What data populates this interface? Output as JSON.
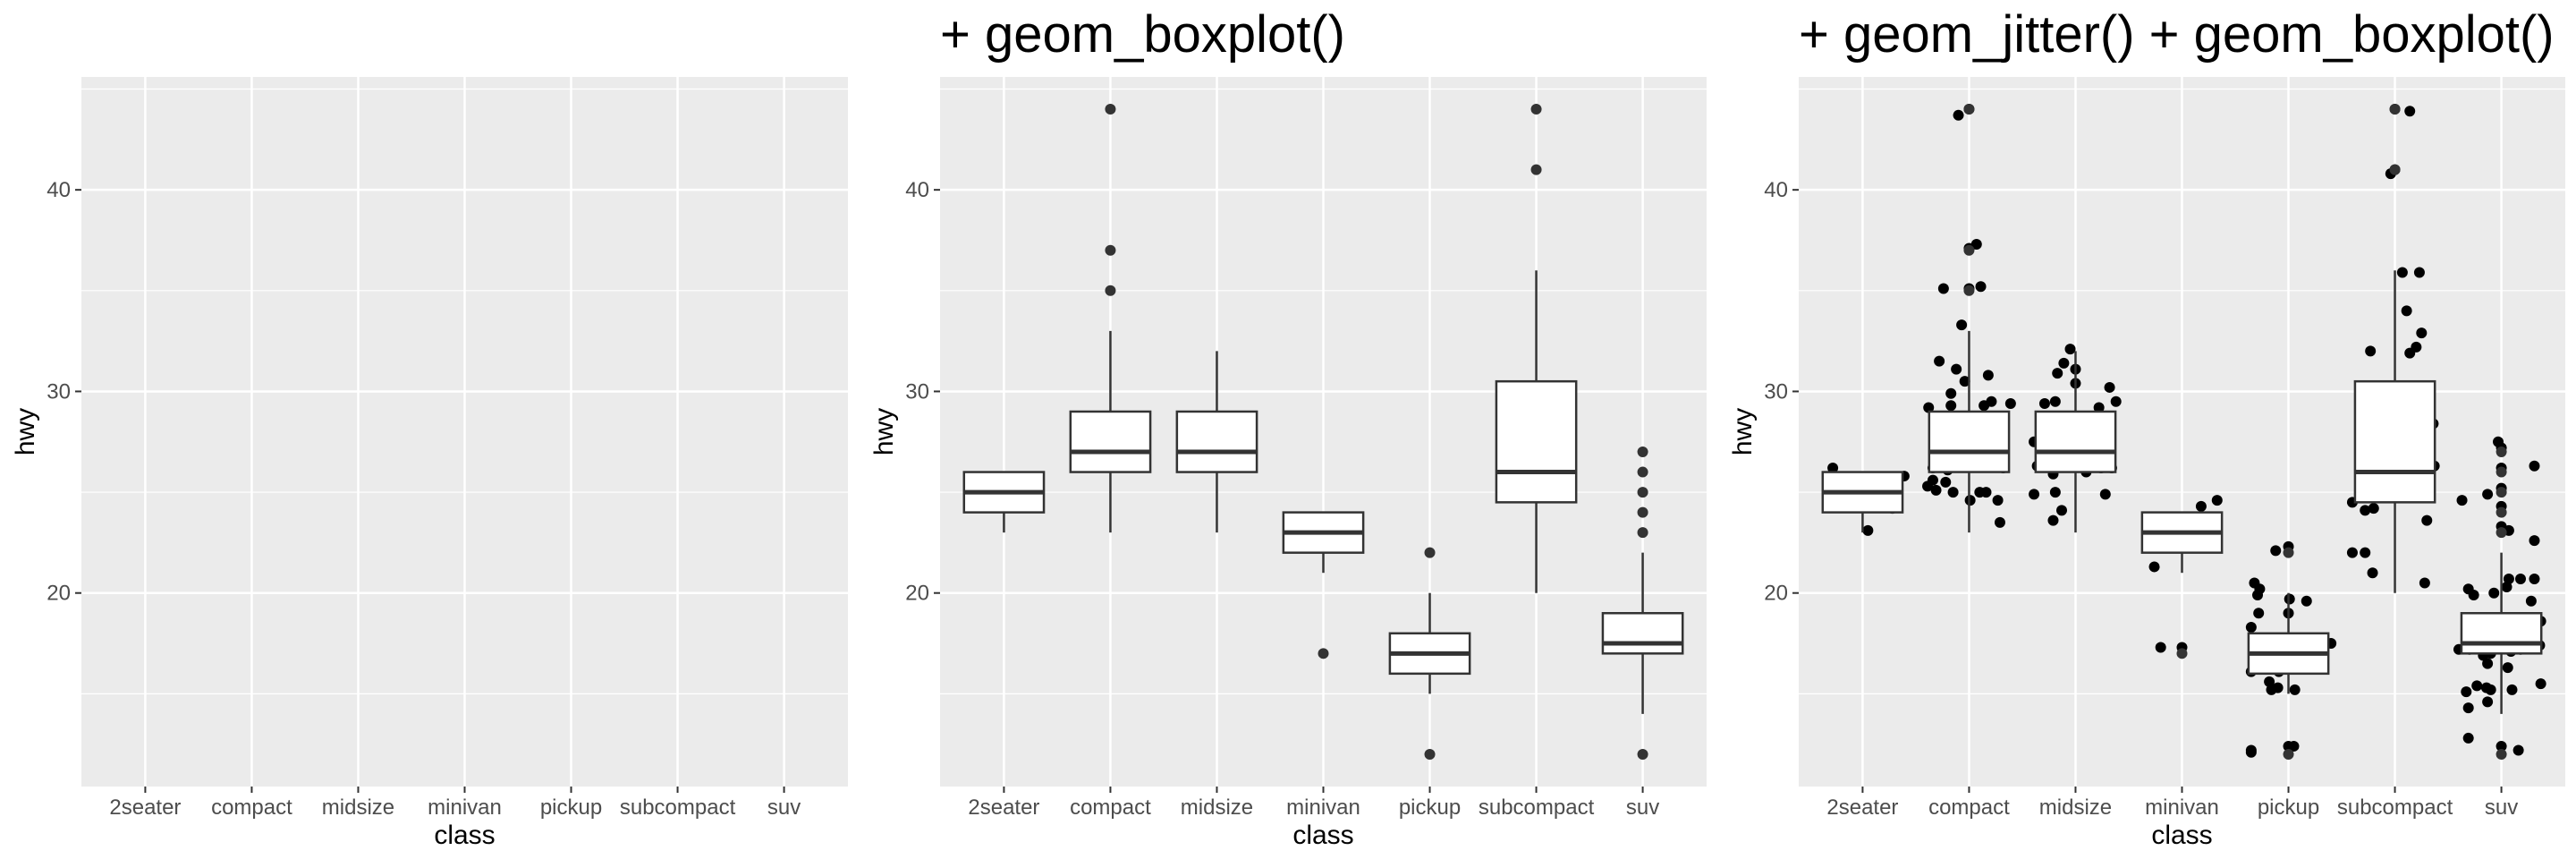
{
  "chart_data": [
    {
      "type": "boxplot",
      "title": "",
      "xlabel": "class",
      "ylabel": "hwy",
      "categories": [
        "2seater",
        "compact",
        "midsize",
        "minivan",
        "pickup",
        "subcompact",
        "suv"
      ],
      "ylim": [
        10.4,
        45.6
      ],
      "yticks": [
        20,
        30,
        40
      ],
      "yticks_minor": [
        15,
        25,
        35,
        45
      ],
      "grid": true,
      "layers": []
    },
    {
      "type": "boxplot",
      "title": "+ geom_boxplot()",
      "xlabel": "class",
      "ylabel": "hwy",
      "categories": [
        "2seater",
        "compact",
        "midsize",
        "minivan",
        "pickup",
        "subcompact",
        "suv"
      ],
      "ylim": [
        10.4,
        45.6
      ],
      "yticks": [
        20,
        30,
        40
      ],
      "yticks_minor": [
        15,
        25,
        35,
        45
      ],
      "grid": true,
      "layers": [
        "boxplot"
      ],
      "boxes": [
        {
          "lower_whisker": 23,
          "q1": 24,
          "median": 25,
          "q3": 26,
          "upper_whisker": 26,
          "outliers": []
        },
        {
          "lower_whisker": 23,
          "q1": 26,
          "median": 27,
          "q3": 29,
          "upper_whisker": 33,
          "outliers": [
            35,
            37,
            44
          ]
        },
        {
          "lower_whisker": 23,
          "q1": 26,
          "median": 27,
          "q3": 29,
          "upper_whisker": 32,
          "outliers": []
        },
        {
          "lower_whisker": 21,
          "q1": 22,
          "median": 23,
          "q3": 24,
          "upper_whisker": 24,
          "outliers": [
            17
          ]
        },
        {
          "lower_whisker": 15,
          "q1": 16,
          "median": 17,
          "q3": 18,
          "upper_whisker": 20,
          "outliers": [
            12,
            22
          ]
        },
        {
          "lower_whisker": 20,
          "q1": 24.5,
          "median": 26,
          "q3": 30.5,
          "upper_whisker": 36,
          "outliers": [
            41,
            44
          ]
        },
        {
          "lower_whisker": 14,
          "q1": 17,
          "median": 17.5,
          "q3": 19,
          "upper_whisker": 22,
          "outliers": [
            12,
            23,
            24,
            25,
            26,
            27
          ]
        }
      ]
    },
    {
      "type": "boxplot+scatter",
      "title": "+ geom_jitter() + geom_boxplot()",
      "xlabel": "class",
      "ylabel": "hwy",
      "categories": [
        "2seater",
        "compact",
        "midsize",
        "minivan",
        "pickup",
        "subcompact",
        "suv"
      ],
      "ylim": [
        10.4,
        45.6
      ],
      "yticks": [
        20,
        30,
        40
      ],
      "yticks_minor": [
        15,
        25,
        35,
        45
      ],
      "grid": true,
      "layers": [
        "jitter",
        "boxplot"
      ],
      "boxes": [
        {
          "lower_whisker": 23,
          "q1": 24,
          "median": 25,
          "q3": 26,
          "upper_whisker": 26,
          "outliers": []
        },
        {
          "lower_whisker": 23,
          "q1": 26,
          "median": 27,
          "q3": 29,
          "upper_whisker": 33,
          "outliers": [
            35,
            37,
            44
          ]
        },
        {
          "lower_whisker": 23,
          "q1": 26,
          "median": 27,
          "q3": 29,
          "upper_whisker": 32,
          "outliers": []
        },
        {
          "lower_whisker": 21,
          "q1": 22,
          "median": 23,
          "q3": 24,
          "upper_whisker": 24,
          "outliers": [
            17
          ]
        },
        {
          "lower_whisker": 15,
          "q1": 16,
          "median": 17,
          "q3": 18,
          "upper_whisker": 20,
          "outliers": [
            12,
            22
          ]
        },
        {
          "lower_whisker": 20,
          "q1": 24.5,
          "median": 26,
          "q3": 30.5,
          "upper_whisker": 36,
          "outliers": [
            41,
            44
          ]
        },
        {
          "lower_whisker": 14,
          "q1": 17,
          "median": 17.5,
          "q3": 19,
          "upper_whisker": 22,
          "outliers": [
            12,
            23,
            24,
            25,
            26,
            27
          ]
        }
      ],
      "jitter_points": [
        [
          0,
          -0.28,
          26.2
        ],
        [
          0,
          0.39,
          25.8
        ],
        [
          0,
          0.28,
          24.2
        ],
        [
          0,
          0.05,
          23.1
        ],
        [
          1,
          -0.1,
          43.7
        ],
        [
          1,
          0,
          44
        ],
        [
          1,
          0.07,
          37.3
        ],
        [
          1,
          0,
          37.1
        ],
        [
          1,
          0.11,
          35.2
        ],
        [
          1,
          0,
          35.1
        ],
        [
          1,
          -0.24,
          35.1
        ],
        [
          1,
          -0.07,
          33.3
        ],
        [
          1,
          -0.28,
          31.5
        ],
        [
          1,
          -0.12,
          31.1
        ],
        [
          1,
          -0.04,
          30.5
        ],
        [
          1,
          0.18,
          30.8
        ],
        [
          1,
          -0.17,
          29.9
        ],
        [
          1,
          -0.38,
          29.2
        ],
        [
          1,
          -0.17,
          29.3
        ],
        [
          1,
          0.14,
          29.3
        ],
        [
          1,
          0.21,
          29.5
        ],
        [
          1,
          0.39,
          29.4
        ],
        [
          1,
          -0.34,
          26.2
        ],
        [
          1,
          -0.2,
          26.1
        ],
        [
          1,
          0.32,
          26.2
        ],
        [
          1,
          -0.39,
          25.3
        ],
        [
          1,
          -0.34,
          25.6
        ],
        [
          1,
          -0.31,
          25.1
        ],
        [
          1,
          -0.22,
          25.5
        ],
        [
          1,
          -0.15,
          25.0
        ],
        [
          1,
          0.01,
          24.6
        ],
        [
          1,
          0.1,
          25
        ],
        [
          1,
          0.16,
          25
        ],
        [
          1,
          0.27,
          24.6
        ],
        [
          1,
          0.29,
          23.5
        ],
        [
          2,
          -0.05,
          32.1
        ],
        [
          2,
          -0.11,
          31.4
        ],
        [
          2,
          0,
          31.1
        ],
        [
          2,
          -0.17,
          30.9
        ],
        [
          2,
          0,
          30.4
        ],
        [
          2,
          0.32,
          30.2
        ],
        [
          2,
          -0.29,
          29.4
        ],
        [
          2,
          -0.19,
          29.5
        ],
        [
          2,
          0.38,
          29.5
        ],
        [
          2,
          0.22,
          29.2
        ],
        [
          2,
          -0.39,
          27.5
        ],
        [
          2,
          -0.36,
          26.3
        ],
        [
          2,
          -0.21,
          25.9
        ],
        [
          2,
          -0.06,
          26.3
        ],
        [
          2,
          0.1,
          26
        ],
        [
          2,
          0.24,
          26.2
        ],
        [
          2,
          0.34,
          26.2
        ],
        [
          2,
          -0.39,
          24.9
        ],
        [
          2,
          -0.19,
          25.0
        ],
        [
          2,
          0.28,
          24.9
        ],
        [
          2,
          -0.13,
          24.1
        ],
        [
          2,
          -0.21,
          23.6
        ],
        [
          3,
          0.18,
          24.3
        ],
        [
          3,
          0.33,
          24.6
        ],
        [
          3,
          0.18,
          22.4
        ],
        [
          3,
          -0.26,
          21.3
        ],
        [
          3,
          -0.2,
          17.3
        ],
        [
          3,
          0,
          17.3
        ],
        [
          4,
          0,
          22.3
        ],
        [
          4,
          -0.12,
          22.1
        ],
        [
          4,
          -0.32,
          20.5
        ],
        [
          4,
          -0.27,
          20.2
        ],
        [
          4,
          -0.29,
          19.9
        ],
        [
          4,
          0.01,
          19.7
        ],
        [
          4,
          0.17,
          19.6
        ],
        [
          4,
          -0.28,
          19.0
        ],
        [
          4,
          0,
          19.0
        ],
        [
          4,
          -0.35,
          18.3
        ],
        [
          4,
          0.4,
          17.5
        ],
        [
          4,
          -0.35,
          16.1
        ],
        [
          4,
          -0.09,
          16.1
        ],
        [
          4,
          -0.18,
          15.6
        ],
        [
          4,
          -0.1,
          15.3
        ],
        [
          4,
          -0.16,
          15.2
        ],
        [
          4,
          0.06,
          15.2
        ],
        [
          4,
          -0.35,
          12.2
        ],
        [
          4,
          -0.35,
          12.1
        ],
        [
          4,
          0,
          12.4
        ],
        [
          4,
          0.05,
          12.4
        ],
        [
          5,
          0,
          44
        ],
        [
          5,
          0.14,
          43.9
        ],
        [
          5,
          -0.04,
          40.8
        ],
        [
          5,
          0,
          41
        ],
        [
          5,
          0.07,
          35.9
        ],
        [
          5,
          0.23,
          35.9
        ],
        [
          5,
          0.11,
          34
        ],
        [
          5,
          0.25,
          32.9
        ],
        [
          5,
          0.2,
          32.2
        ],
        [
          5,
          0.14,
          31.9
        ],
        [
          5,
          -0.23,
          32
        ],
        [
          5,
          0.36,
          28.4
        ],
        [
          5,
          0.37,
          26.3
        ],
        [
          5,
          -0.4,
          24.5
        ],
        [
          5,
          -0.28,
          24.1
        ],
        [
          5,
          -0.2,
          24.2
        ],
        [
          5,
          0.3,
          23.6
        ],
        [
          5,
          -0.4,
          22.0
        ],
        [
          5,
          -0.28,
          22.0
        ],
        [
          5,
          -0.21,
          21.0
        ],
        [
          5,
          0.28,
          20.5
        ],
        [
          6,
          0,
          27.2
        ],
        [
          6,
          0,
          26.2
        ],
        [
          6,
          0,
          25.2
        ],
        [
          6,
          0,
          24.3
        ],
        [
          6,
          0,
          23.3
        ],
        [
          6,
          0,
          12.4
        ],
        [
          6,
          -0.03,
          27.5
        ],
        [
          6,
          0.31,
          26.3
        ],
        [
          6,
          -0.37,
          24.6
        ],
        [
          6,
          -0.13,
          24.9
        ],
        [
          6,
          0.07,
          23.1
        ],
        [
          6,
          0.31,
          22.6
        ],
        [
          6,
          -0.31,
          20.2
        ],
        [
          6,
          0.07,
          20.7
        ],
        [
          6,
          0.18,
          20.7
        ],
        [
          6,
          0.31,
          20.7
        ],
        [
          6,
          -0.26,
          19.9
        ],
        [
          6,
          -0.07,
          20
        ],
        [
          6,
          0.05,
          20.3
        ],
        [
          6,
          0.28,
          19.6
        ],
        [
          6,
          0.37,
          18.6
        ],
        [
          6,
          -0.4,
          17.2
        ],
        [
          6,
          -0.3,
          17.2
        ],
        [
          6,
          -0.1,
          17
        ],
        [
          6,
          0.09,
          17.1
        ],
        [
          6,
          0.18,
          17.2
        ],
        [
          6,
          0.36,
          17.4
        ],
        [
          6,
          -0.13,
          16.5
        ],
        [
          6,
          0.06,
          16.3
        ],
        [
          6,
          -0.33,
          15.1
        ],
        [
          6,
          -0.23,
          15.4
        ],
        [
          6,
          -0.1,
          15.2
        ],
        [
          6,
          -0.14,
          15.3
        ],
        [
          6,
          0.1,
          15.2
        ],
        [
          6,
          0.37,
          15.5
        ],
        [
          6,
          -0.31,
          14.3
        ],
        [
          6,
          -0.13,
          14.6
        ],
        [
          6,
          -0.31,
          12.8
        ],
        [
          6,
          0.16,
          12.2
        ],
        [
          6,
          -0.17,
          16.9
        ],
        [
          6,
          0.24,
          18.0
        ]
      ]
    }
  ],
  "colors": {
    "panel_bg": "#EBEBEB",
    "grid": "#FFFFFF",
    "box_line": "#333333",
    "box_fill": "#FFFFFF",
    "point": "#000000",
    "tick_text": "#4D4D4D"
  }
}
